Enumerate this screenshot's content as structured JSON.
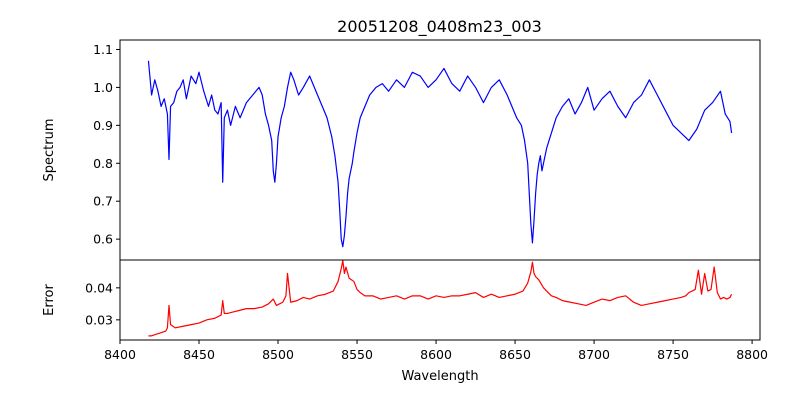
{
  "chart_data": [
    {
      "type": "line",
      "title": "20051208_0408m23_003",
      "xlabel": "Wavelength",
      "ylabel": "Spectrum",
      "xlim": [
        8400,
        8805
      ],
      "ylim": [
        0.545,
        1.125
      ],
      "xticks": [
        8400,
        8450,
        8500,
        8550,
        8600,
        8650,
        8700,
        8750,
        8800
      ],
      "yticks": [
        0.6,
        0.7,
        0.8,
        0.9,
        1.0,
        1.1
      ],
      "ytick_labels": [
        "0.6",
        "0.7",
        "0.8",
        "0.9",
        "1.0",
        "1.1"
      ],
      "grid": false,
      "series": [
        {
          "color": "#0000ff",
          "x": [
            8418,
            8420,
            8422,
            8424,
            8426,
            8428,
            8430,
            8431,
            8432,
            8434,
            8436,
            8438,
            8440,
            8442,
            8445,
            8448,
            8450,
            8453,
            8456,
            8458,
            8460,
            8462,
            8464,
            8465,
            8466,
            8468,
            8470,
            8473,
            8476,
            8480,
            8484,
            8488,
            8490,
            8492,
            8494,
            8496,
            8497,
            8498,
            8499,
            8500,
            8502,
            8504,
            8506,
            8508,
            8510,
            8513,
            8516,
            8520,
            8524,
            8528,
            8531,
            8534,
            8536,
            8538,
            8539,
            8540,
            8541,
            8542,
            8543,
            8544,
            8545,
            8546,
            8547,
            8548,
            8550,
            8552,
            8555,
            8558,
            8562,
            8566,
            8570,
            8575,
            8580,
            8585,
            8590,
            8595,
            8600,
            8605,
            8610,
            8615,
            8620,
            8625,
            8630,
            8635,
            8640,
            8645,
            8648,
            8651,
            8654,
            8656,
            8658,
            8659,
            8660,
            8661,
            8662,
            8663,
            8664,
            8665,
            8666,
            8667,
            8668,
            8670,
            8673,
            8676,
            8680,
            8684,
            8688,
            8692,
            8696,
            8700,
            8705,
            8710,
            8715,
            8720,
            8725,
            8730,
            8735,
            8740,
            8745,
            8750,
            8755,
            8760,
            8765,
            8770,
            8775,
            8780,
            8783,
            8786,
            8787
          ],
          "y": [
            1.07,
            0.98,
            1.02,
            0.99,
            0.95,
            0.97,
            0.93,
            0.81,
            0.95,
            0.96,
            0.99,
            1.0,
            1.02,
            0.97,
            1.03,
            1.01,
            1.04,
            0.99,
            0.95,
            0.98,
            0.94,
            0.93,
            0.96,
            0.75,
            0.92,
            0.94,
            0.9,
            0.95,
            0.92,
            0.96,
            0.98,
            1.0,
            0.98,
            0.93,
            0.9,
            0.86,
            0.78,
            0.75,
            0.8,
            0.87,
            0.92,
            0.95,
            1.0,
            1.04,
            1.02,
            0.98,
            1.0,
            1.03,
            0.99,
            0.95,
            0.92,
            0.87,
            0.82,
            0.75,
            0.68,
            0.6,
            0.58,
            0.61,
            0.66,
            0.72,
            0.76,
            0.78,
            0.8,
            0.83,
            0.88,
            0.92,
            0.95,
            0.98,
            1.0,
            1.01,
            0.99,
            1.02,
            1.0,
            1.04,
            1.03,
            1.0,
            1.02,
            1.05,
            1.01,
            0.99,
            1.03,
            1.0,
            0.96,
            1.0,
            1.02,
            0.98,
            0.95,
            0.92,
            0.9,
            0.86,
            0.8,
            0.72,
            0.64,
            0.59,
            0.65,
            0.72,
            0.77,
            0.8,
            0.82,
            0.78,
            0.8,
            0.84,
            0.88,
            0.92,
            0.95,
            0.97,
            0.93,
            0.96,
            1.0,
            0.94,
            0.97,
            0.99,
            0.95,
            0.92,
            0.96,
            0.98,
            1.02,
            0.98,
            0.94,
            0.9,
            0.88,
            0.86,
            0.89,
            0.94,
            0.96,
            0.99,
            0.93,
            0.91,
            0.88
          ]
        }
      ]
    },
    {
      "type": "line",
      "xlabel": "Wavelength",
      "ylabel": "Error",
      "xlim": [
        8400,
        8805
      ],
      "ylim": [
        0.0237,
        0.0487
      ],
      "xticks": [
        8400,
        8450,
        8500,
        8550,
        8600,
        8650,
        8700,
        8750,
        8800
      ],
      "xtick_labels": [
        "8400",
        "8450",
        "8500",
        "8550",
        "8600",
        "8650",
        "8700",
        "8750",
        "8800"
      ],
      "yticks": [
        0.03,
        0.04
      ],
      "ytick_labels": [
        "0.03",
        "0.04"
      ],
      "grid": false,
      "series": [
        {
          "color": "#ff0000",
          "x": [
            8418,
            8420,
            8423,
            8426,
            8429,
            8430,
            8431,
            8432,
            8435,
            8440,
            8445,
            8450,
            8455,
            8460,
            8464,
            8465,
            8466,
            8468,
            8472,
            8476,
            8480,
            8485,
            8490,
            8494,
            8497,
            8499,
            8501,
            8503,
            8505,
            8506,
            8508,
            8512,
            8516,
            8520,
            8525,
            8530,
            8535,
            8538,
            8540,
            8541,
            8542,
            8543,
            8545,
            8548,
            8550,
            8552,
            8555,
            8560,
            8565,
            8570,
            8575,
            8580,
            8585,
            8590,
            8595,
            8600,
            8605,
            8610,
            8615,
            8620,
            8625,
            8630,
            8635,
            8640,
            8645,
            8650,
            8655,
            8658,
            8660,
            8661,
            8662,
            8663,
            8665,
            8668,
            8670,
            8673,
            8676,
            8680,
            8685,
            8690,
            8695,
            8700,
            8705,
            8710,
            8715,
            8720,
            8725,
            8730,
            8735,
            8740,
            8745,
            8750,
            8755,
            8758,
            8760,
            8762,
            8764,
            8766,
            8768,
            8770,
            8772,
            8774,
            8776,
            8778,
            8780,
            8782,
            8784,
            8786,
            8787
          ],
          "y": [
            0.025,
            0.025,
            0.0255,
            0.026,
            0.0265,
            0.0275,
            0.0345,
            0.0285,
            0.0275,
            0.028,
            0.0285,
            0.029,
            0.03,
            0.0305,
            0.0315,
            0.036,
            0.032,
            0.032,
            0.0325,
            0.033,
            0.0335,
            0.0335,
            0.034,
            0.035,
            0.0365,
            0.0345,
            0.035,
            0.0355,
            0.0375,
            0.0445,
            0.0355,
            0.036,
            0.037,
            0.0365,
            0.0375,
            0.038,
            0.039,
            0.042,
            0.046,
            0.0485,
            0.0445,
            0.0465,
            0.043,
            0.042,
            0.0395,
            0.0385,
            0.0375,
            0.0375,
            0.0365,
            0.037,
            0.0375,
            0.0365,
            0.0375,
            0.0375,
            0.0365,
            0.0375,
            0.037,
            0.0375,
            0.0375,
            0.038,
            0.0385,
            0.037,
            0.038,
            0.037,
            0.0375,
            0.038,
            0.039,
            0.0415,
            0.045,
            0.048,
            0.0445,
            0.0435,
            0.0425,
            0.04,
            0.039,
            0.0375,
            0.037,
            0.036,
            0.0355,
            0.035,
            0.0345,
            0.0355,
            0.0365,
            0.036,
            0.037,
            0.0375,
            0.0355,
            0.0345,
            0.035,
            0.0355,
            0.036,
            0.0365,
            0.037,
            0.0375,
            0.0385,
            0.039,
            0.0395,
            0.0455,
            0.038,
            0.0445,
            0.039,
            0.0395,
            0.0465,
            0.0385,
            0.0365,
            0.037,
            0.0365,
            0.037,
            0.038
          ]
        }
      ]
    }
  ]
}
